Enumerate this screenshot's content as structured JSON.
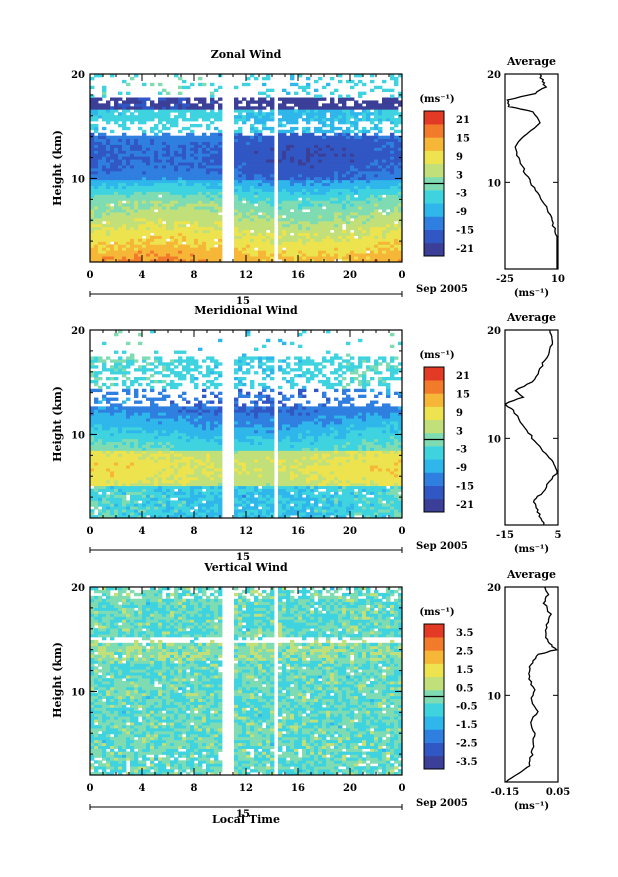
{
  "chart_data": [
    {
      "type": "heatmap",
      "title": "Zonal Wind",
      "ylabel": "Height (km)",
      "y_ticks": [
        "10",
        "20"
      ],
      "ylim": [
        2,
        20
      ],
      "x_ticks": [
        "0",
        "4",
        "8",
        "12",
        "16",
        "20",
        "0"
      ],
      "xlim": [
        0,
        24
      ],
      "date_label": "15",
      "month_label": "Sep 2005",
      "colorbar": {
        "unit": "(ms⁻¹)",
        "ticks": [
          "21",
          "15",
          "9",
          "3",
          "-3",
          "-9",
          "-15",
          "-21"
        ],
        "range": [
          -24,
          24
        ],
        "colors": [
          "#3b3f97",
          "#3157c4",
          "#2f7fe0",
          "#2fb6ea",
          "#3fd3e0",
          "#7fdcb2",
          "#c2e07a",
          "#ece34f",
          "#f6b637",
          "#f27a2b",
          "#e23a24"
        ]
      },
      "profile": [
        [
          16,
          2.0
        ],
        [
          15,
          2.7
        ],
        [
          12,
          3.5
        ],
        [
          10,
          4.5
        ],
        [
          8,
          5.5
        ],
        [
          6,
          6.5
        ],
        [
          3,
          7.5
        ],
        [
          -1,
          8.5
        ],
        [
          -6,
          9.5
        ],
        [
          -10,
          10.5
        ],
        [
          -14,
          11.5
        ],
        [
          -17,
          12.5
        ],
        [
          -18,
          13.5
        ],
        [
          -10,
          14.5
        ],
        [
          -2,
          15.5
        ],
        [
          -6,
          16.5
        ],
        [
          -22,
          17.0
        ],
        [
          -23,
          17.6
        ],
        [
          -5,
          18.2
        ],
        [
          2,
          18.8
        ],
        [
          0,
          19.3
        ],
        [
          -2,
          20.0
        ]
      ],
      "avg": {
        "title": "Average",
        "xlabel": "(ms⁻¹)",
        "x_ticks": [
          "-25",
          "10"
        ],
        "y_ticks": [
          "10",
          "20"
        ],
        "xlim": [
          -25,
          10
        ],
        "ylim": [
          2,
          20
        ]
      }
    },
    {
      "type": "heatmap",
      "title": "Meridional Wind",
      "ylabel": "Height (km)",
      "y_ticks": [
        "10",
        "20"
      ],
      "ylim": [
        2,
        20
      ],
      "x_ticks": [
        "0",
        "4",
        "8",
        "12",
        "16",
        "20",
        "0"
      ],
      "xlim": [
        0,
        24
      ],
      "date_label": "15",
      "month_label": "Sep 2005",
      "colorbar": {
        "unit": "(ms⁻¹)",
        "ticks": [
          "21",
          "15",
          "9",
          "3",
          "-3",
          "-9",
          "-15",
          "-21"
        ],
        "range": [
          -24,
          24
        ],
        "colors": [
          "#3b3f97",
          "#3157c4",
          "#2f7fe0",
          "#2fb6ea",
          "#3fd3e0",
          "#7fdcb2",
          "#c2e07a",
          "#ece34f",
          "#f6b637",
          "#f27a2b",
          "#e23a24"
        ]
      },
      "profile": [
        [
          0,
          2.0
        ],
        [
          -2,
          2.8
        ],
        [
          -3,
          3.6
        ],
        [
          -4,
          4.3
        ],
        [
          -1,
          5.0
        ],
        [
          2,
          6.0
        ],
        [
          5,
          7.0
        ],
        [
          3,
          7.8
        ],
        [
          0,
          8.6
        ],
        [
          -3,
          9.5
        ],
        [
          -6,
          10.5
        ],
        [
          -9,
          11.5
        ],
        [
          -12,
          12.6
        ],
        [
          -15,
          13.2
        ],
        [
          -8,
          13.8
        ],
        [
          -11,
          14.4
        ],
        [
          -5,
          15.2
        ],
        [
          -2,
          16.2
        ],
        [
          0,
          17.2
        ],
        [
          2,
          18.2
        ],
        [
          3,
          19.2
        ],
        [
          2,
          20.0
        ]
      ],
      "avg": {
        "title": "Average",
        "xlabel": "(ms⁻¹)",
        "x_ticks": [
          "-15",
          "5"
        ],
        "y_ticks": [
          "10",
          "20"
        ],
        "xlim": [
          -15,
          5
        ],
        "ylim": [
          2,
          20
        ]
      }
    },
    {
      "type": "heatmap",
      "title": "Vertical Wind",
      "xlabel": "Local Time",
      "ylabel": "Height (km)",
      "y_ticks": [
        "10",
        "20"
      ],
      "ylim": [
        2,
        20
      ],
      "x_ticks": [
        "0",
        "4",
        "8",
        "12",
        "16",
        "20",
        "0"
      ],
      "xlim": [
        0,
        24
      ],
      "date_label": "15",
      "month_label": "Sep 2005",
      "colorbar": {
        "unit": "(ms⁻¹)",
        "ticks": [
          "3.5",
          "2.5",
          "1.5",
          "0.5",
          "-0.5",
          "-1.5",
          "-2.5",
          "-3.5"
        ],
        "range": [
          -4,
          4
        ],
        "colors": [
          "#3b3f97",
          "#3157c4",
          "#2f7fe0",
          "#2fb6ea",
          "#3fd3e0",
          "#7fdcb2",
          "#c2e07a",
          "#ece34f",
          "#f6b637",
          "#f27a2b",
          "#e23a24"
        ]
      },
      "profile": [
        [
          -0.15,
          2.0
        ],
        [
          -0.1,
          2.8
        ],
        [
          -0.06,
          3.5
        ],
        [
          -0.05,
          4.5
        ],
        [
          -0.04,
          5.5
        ],
        [
          -0.04,
          6.5
        ],
        [
          -0.05,
          7.5
        ],
        [
          -0.03,
          8.5
        ],
        [
          -0.05,
          9.5
        ],
        [
          -0.04,
          10.5
        ],
        [
          -0.06,
          11.5
        ],
        [
          -0.06,
          12.5
        ],
        [
          -0.05,
          13.0
        ],
        [
          -0.02,
          13.8
        ],
        [
          0.04,
          14.2
        ],
        [
          0.02,
          14.8
        ],
        [
          0.0,
          15.5
        ],
        [
          0.01,
          16.5
        ],
        [
          0.02,
          17.5
        ],
        [
          0.0,
          18.5
        ],
        [
          0.01,
          19.3
        ],
        [
          0.0,
          20.0
        ]
      ],
      "avg": {
        "title": "Average",
        "xlabel": "(ms⁻¹)",
        "x_ticks": [
          "-0.15",
          "0.05"
        ],
        "y_ticks": [
          "10",
          "20"
        ],
        "xlim": [
          -0.15,
          0.05
        ],
        "ylim": [
          2,
          20
        ]
      }
    }
  ]
}
